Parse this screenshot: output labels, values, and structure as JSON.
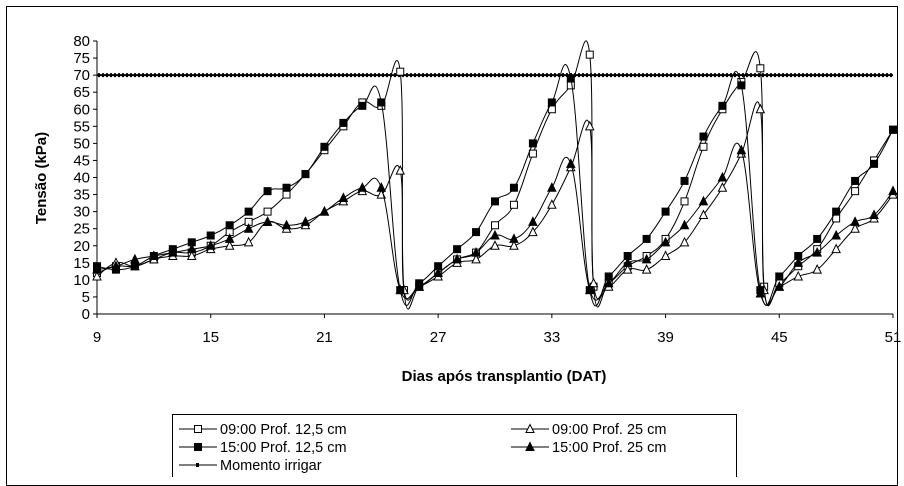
{
  "chart_data": {
    "type": "line",
    "title": "",
    "xlabel": "Dias após transplantio (DAT)",
    "ylabel": "Tensão (kPa)",
    "xlim": [
      9,
      51
    ],
    "ylim": [
      0,
      80
    ],
    "x_ticks": [
      "9",
      "15",
      "21",
      "27",
      "33",
      "39",
      "45",
      "51"
    ],
    "y_ticks": [
      "0",
      "5",
      "10",
      "15",
      "20",
      "25",
      "30",
      "35",
      "40",
      "45",
      "50",
      "55",
      "60",
      "65",
      "70",
      "75",
      "80"
    ],
    "grid": false,
    "legend_position": "bottom",
    "threshold": {
      "name": "Momento irrigar",
      "value": 70
    },
    "series": [
      {
        "name": "09:00 Prof. 12,5 cm",
        "marker": "square-open",
        "points": [
          [
            9,
            12
          ],
          [
            10,
            14
          ],
          [
            11,
            14
          ],
          [
            12,
            16
          ],
          [
            13,
            18
          ],
          [
            14,
            18
          ],
          [
            15,
            20
          ],
          [
            16,
            24
          ],
          [
            17,
            27
          ],
          [
            18,
            30
          ],
          [
            19,
            35
          ],
          [
            20,
            41
          ],
          [
            21,
            48
          ],
          [
            22,
            55
          ],
          [
            23,
            62
          ],
          [
            24,
            61
          ],
          [
            25,
            71
          ],
          [
            25.2,
            7
          ],
          [
            26,
            8
          ],
          [
            27,
            12
          ],
          [
            28,
            16
          ],
          [
            29,
            18
          ],
          [
            30,
            26
          ],
          [
            31,
            32
          ],
          [
            32,
            47
          ],
          [
            33,
            60
          ],
          [
            34,
            67
          ],
          [
            35,
            76
          ],
          [
            35.2,
            8
          ],
          [
            36,
            9
          ],
          [
            37,
            14
          ],
          [
            38,
            17
          ],
          [
            39,
            22
          ],
          [
            40,
            33
          ],
          [
            41,
            49
          ],
          [
            42,
            60
          ],
          [
            43,
            68
          ],
          [
            44,
            72
          ],
          [
            44.2,
            8
          ],
          [
            45,
            9
          ],
          [
            46,
            14
          ],
          [
            47,
            19
          ],
          [
            48,
            28
          ],
          [
            49,
            36
          ],
          [
            50,
            45
          ],
          [
            51,
            54
          ]
        ]
      },
      {
        "name": "09:00 Prof. 25 cm",
        "marker": "triangle-open",
        "points": [
          [
            9,
            11
          ],
          [
            10,
            15
          ],
          [
            11,
            14
          ],
          [
            12,
            16
          ],
          [
            13,
            17
          ],
          [
            14,
            17
          ],
          [
            15,
            19
          ],
          [
            16,
            20
          ],
          [
            17,
            21
          ],
          [
            18,
            27
          ],
          [
            19,
            25
          ],
          [
            20,
            26
          ],
          [
            21,
            30
          ],
          [
            22,
            33
          ],
          [
            23,
            36
          ],
          [
            24,
            35
          ],
          [
            25,
            42
          ],
          [
            25.2,
            7
          ],
          [
            26,
            8
          ],
          [
            27,
            11
          ],
          [
            28,
            15
          ],
          [
            29,
            16
          ],
          [
            30,
            20
          ],
          [
            31,
            20
          ],
          [
            32,
            24
          ],
          [
            33,
            32
          ],
          [
            34,
            43
          ],
          [
            35,
            55
          ],
          [
            35.2,
            9
          ],
          [
            36,
            8
          ],
          [
            37,
            13
          ],
          [
            38,
            13
          ],
          [
            39,
            17
          ],
          [
            40,
            21
          ],
          [
            41,
            29
          ],
          [
            42,
            37
          ],
          [
            43,
            47
          ],
          [
            44,
            60
          ],
          [
            44.2,
            7
          ],
          [
            45,
            8
          ],
          [
            46,
            11
          ],
          [
            47,
            13
          ],
          [
            48,
            19
          ],
          [
            49,
            25
          ],
          [
            50,
            28
          ],
          [
            51,
            35
          ]
        ]
      },
      {
        "name": "15:00 Prof. 12,5 cm",
        "marker": "square-filled",
        "points": [
          [
            9,
            14
          ],
          [
            10,
            13
          ],
          [
            11,
            14
          ],
          [
            12,
            17
          ],
          [
            13,
            19
          ],
          [
            14,
            21
          ],
          [
            15,
            23
          ],
          [
            16,
            26
          ],
          [
            17,
            30
          ],
          [
            18,
            36
          ],
          [
            19,
            37
          ],
          [
            20,
            41
          ],
          [
            21,
            49
          ],
          [
            22,
            56
          ],
          [
            23,
            61
          ],
          [
            24,
            62
          ],
          [
            25,
            7
          ],
          [
            26,
            9
          ],
          [
            27,
            14
          ],
          [
            28,
            19
          ],
          [
            29,
            24
          ],
          [
            30,
            33
          ],
          [
            31,
            37
          ],
          [
            32,
            50
          ],
          [
            33,
            62
          ],
          [
            34,
            69
          ],
          [
            35,
            7
          ],
          [
            36,
            11
          ],
          [
            37,
            17
          ],
          [
            38,
            22
          ],
          [
            39,
            30
          ],
          [
            40,
            39
          ],
          [
            41,
            52
          ],
          [
            42,
            61
          ],
          [
            43,
            67
          ],
          [
            44,
            7
          ],
          [
            45,
            11
          ],
          [
            46,
            17
          ],
          [
            47,
            22
          ],
          [
            48,
            30
          ],
          [
            49,
            39
          ],
          [
            50,
            44
          ],
          [
            51,
            54
          ]
        ]
      },
      {
        "name": "15:00 Prof. 25 cm",
        "marker": "triangle-filled",
        "points": [
          [
            9,
            13
          ],
          [
            10,
            14
          ],
          [
            11,
            16
          ],
          [
            12,
            17
          ],
          [
            13,
            18
          ],
          [
            14,
            19
          ],
          [
            15,
            20
          ],
          [
            16,
            22
          ],
          [
            17,
            25
          ],
          [
            18,
            27
          ],
          [
            19,
            26
          ],
          [
            20,
            27
          ],
          [
            21,
            30
          ],
          [
            22,
            34
          ],
          [
            23,
            37
          ],
          [
            24,
            37
          ],
          [
            25,
            7
          ],
          [
            26,
            8
          ],
          [
            27,
            12
          ],
          [
            28,
            16
          ],
          [
            29,
            18
          ],
          [
            30,
            23
          ],
          [
            31,
            22
          ],
          [
            32,
            27
          ],
          [
            33,
            37
          ],
          [
            34,
            44
          ],
          [
            35,
            7
          ],
          [
            36,
            9
          ],
          [
            37,
            15
          ],
          [
            38,
            16
          ],
          [
            39,
            21
          ],
          [
            40,
            26
          ],
          [
            41,
            33
          ],
          [
            42,
            40
          ],
          [
            43,
            48
          ],
          [
            44,
            6
          ],
          [
            45,
            8
          ],
          [
            46,
            15
          ],
          [
            47,
            18
          ],
          [
            48,
            23
          ],
          [
            49,
            27
          ],
          [
            50,
            29
          ],
          [
            51,
            36
          ]
        ]
      }
    ]
  }
}
